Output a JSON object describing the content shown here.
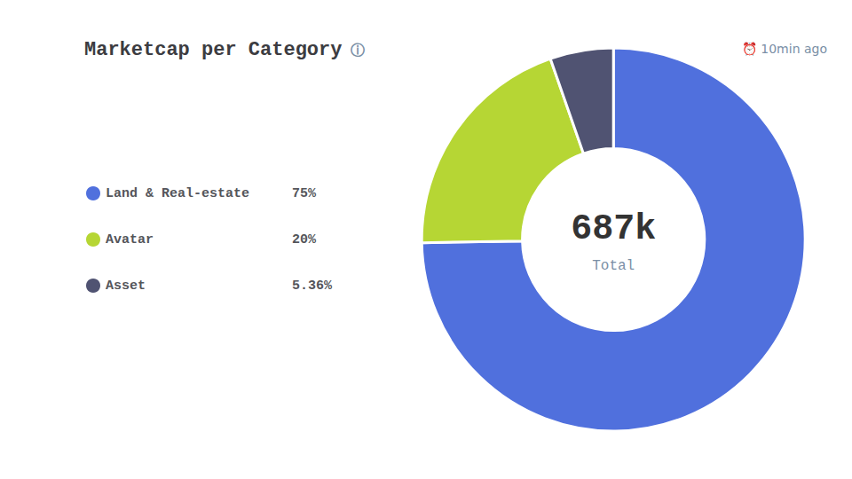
{
  "chart_data": {
    "type": "pie",
    "title": "Marketcap per Category",
    "title_icon": "ⓘ",
    "timestamp_icon": "⏰",
    "timestamp": "10min ago",
    "total_label": "687k",
    "total_sublabel": "Total",
    "categories": [
      "Land & Real-estate",
      "Avatar",
      "Asset"
    ],
    "values": [
      75.0,
      20.0,
      5.36
    ],
    "value_labels": [
      "75%",
      "20%",
      "5.36%"
    ],
    "legend": "left"
  }
}
